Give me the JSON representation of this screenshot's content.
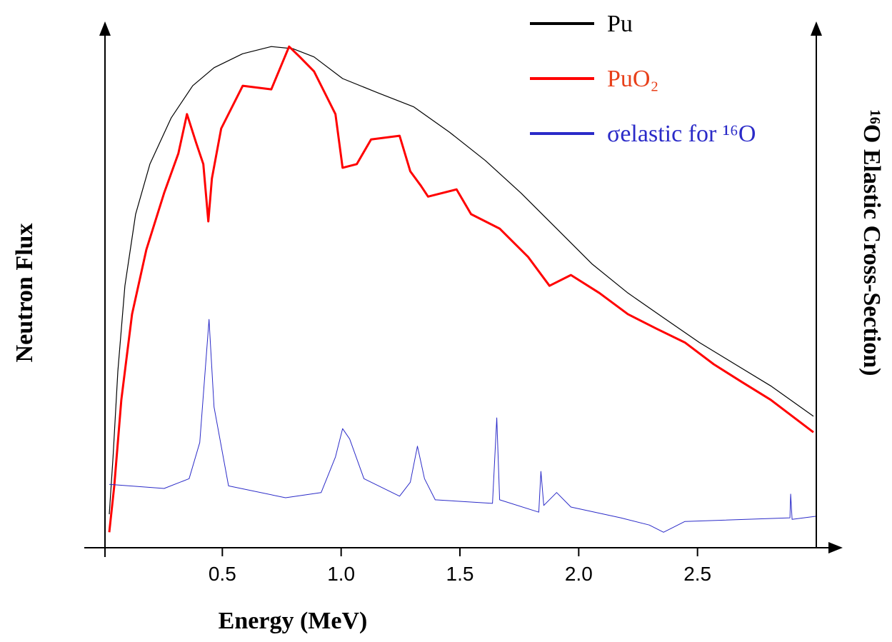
{
  "chart_data": {
    "type": "line",
    "x_label": "Energy (MeV)",
    "y_label": "Neutron Flux",
    "y2_label": "¹⁶O Elastic Cross-Section)",
    "xlim": [
      0,
      3
    ],
    "xticks": [
      0.5,
      {
        "value": 1,
        "label": "1.0"
      },
      1.5,
      {
        "value": 2,
        "label": "2.0"
      },
      2.5
    ],
    "ylim": [
      0,
      100
    ],
    "y2lim": [
      0,
      100
    ],
    "series": [
      {
        "name": "Pu",
        "color": "#000000",
        "text_color": "#000000",
        "width": 1.2,
        "x": [
          0.024,
          0.04,
          0.06,
          0.09,
          0.135,
          0.195,
          0.285,
          0.375,
          0.465,
          0.585,
          0.706,
          0.796,
          0.886,
          1.006,
          1.156,
          1.306,
          1.456,
          1.607,
          1.757,
          1.907,
          2.057,
          2.207,
          2.357,
          2.508,
          2.658,
          2.808,
          2.988
        ],
        "values": [
          6.5,
          17.6,
          34.2,
          50.8,
          64.7,
          74.4,
          83.4,
          89.6,
          93.1,
          95.8,
          97.2,
          96.8,
          95.2,
          91.0,
          88.2,
          85.5,
          80.6,
          75.1,
          68.8,
          61.9,
          55.0,
          49.4,
          44.6,
          39.8,
          35.6,
          31.4,
          25.5
        ]
      },
      {
        "name": "PuO₂",
        "color": "#ff0000",
        "text_color": "#e8401a",
        "width": 3,
        "x": [
          0.024,
          0.045,
          0.075,
          0.12,
          0.18,
          0.255,
          0.315,
          0.351,
          0.39,
          0.42,
          0.441,
          0.456,
          0.495,
          0.586,
          0.706,
          0.781,
          0.826,
          0.886,
          0.976,
          1.006,
          1.066,
          1.126,
          1.246,
          1.291,
          1.336,
          1.366,
          1.486,
          1.547,
          1.667,
          1.787,
          1.877,
          1.967,
          2.087,
          2.207,
          2.327,
          2.447,
          2.568,
          2.688,
          2.808,
          2.988
        ],
        "values": [
          3.0,
          12.0,
          28.7,
          45.3,
          57.8,
          68.8,
          76.5,
          84.1,
          78.5,
          74.4,
          63.3,
          71.6,
          81.3,
          89.6,
          88.9,
          97.2,
          95.2,
          92.4,
          84.1,
          73.7,
          74.4,
          79.2,
          79.9,
          73.0,
          70.2,
          68.1,
          69.5,
          64.7,
          61.9,
          56.4,
          50.8,
          52.9,
          49.4,
          45.3,
          42.5,
          39.8,
          35.6,
          32.1,
          28.7,
          22.4
        ]
      },
      {
        "name": "σelastic for ¹⁶O",
        "color": "#2b2bc8",
        "text_color": "#2b2bc8",
        "width": 1,
        "axis": "y2",
        "x": [
          0.024,
          0.255,
          0.36,
          0.405,
          0.444,
          0.465,
          0.526,
          0.766,
          0.916,
          0.976,
          1.006,
          1.036,
          1.096,
          1.246,
          1.291,
          1.321,
          1.351,
          1.396,
          1.637,
          1.655,
          1.667,
          1.832,
          1.841,
          1.853,
          1.907,
          1.967,
          2.177,
          2.297,
          2.357,
          2.447,
          2.889,
          2.892,
          2.898,
          2.997
        ],
        "values": [
          12.3,
          11.5,
          13.4,
          20.4,
          44.3,
          27.3,
          12.0,
          9.7,
          10.7,
          17.6,
          23.1,
          21.1,
          13.4,
          10.0,
          12.7,
          19.7,
          13.4,
          9.3,
          8.6,
          25.2,
          9.3,
          6.9,
          14.8,
          8.2,
          10.7,
          7.9,
          5.8,
          4.4,
          3.0,
          5.1,
          5.8,
          10.4,
          5.5,
          6.1
        ]
      }
    ]
  }
}
